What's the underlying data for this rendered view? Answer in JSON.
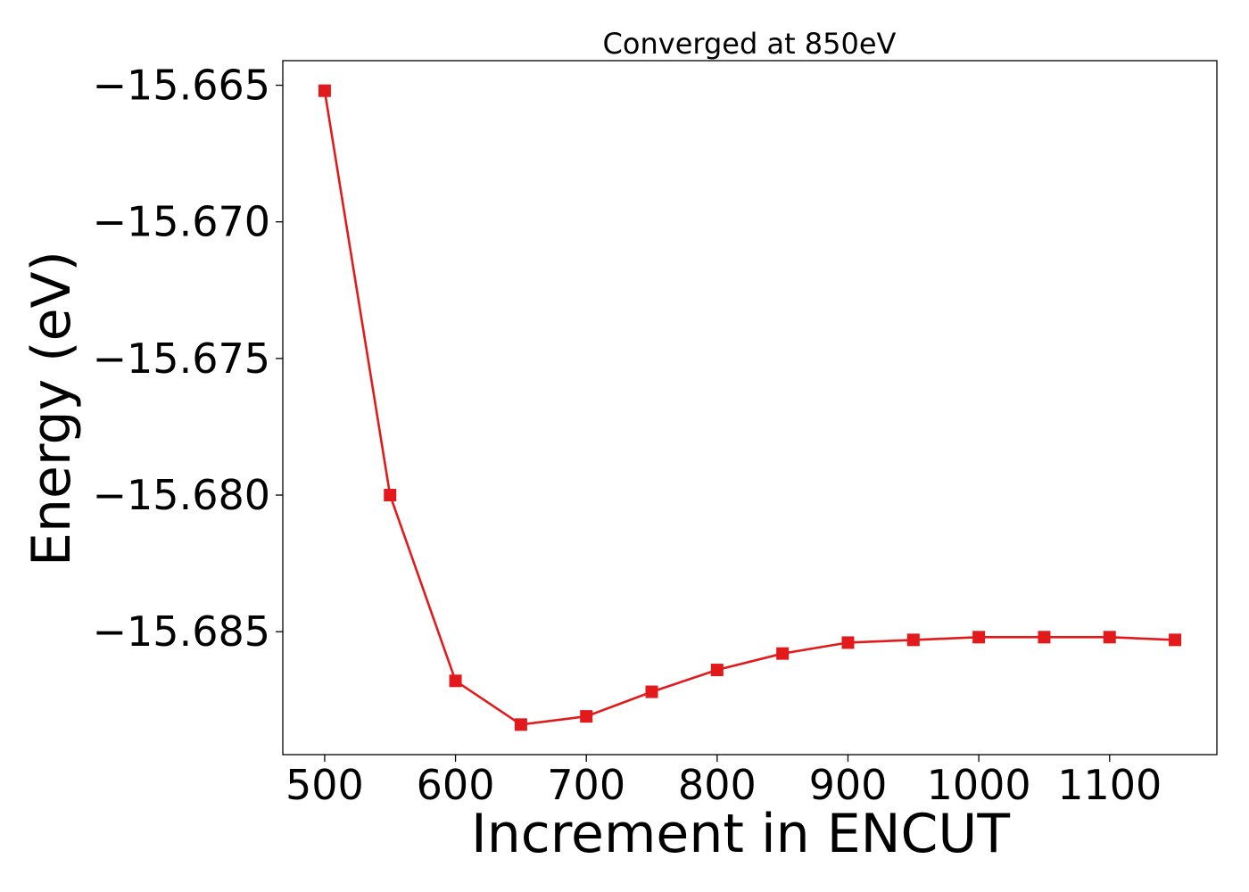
{
  "chart_data": {
    "type": "line",
    "title": "Converged at 850eV",
    "xlabel": "Increment in ENCUT",
    "ylabel": "Energy (eV)",
    "x": [
      500,
      550,
      600,
      650,
      700,
      750,
      800,
      850,
      900,
      950,
      1000,
      1050,
      1100,
      1150
    ],
    "series": [
      {
        "values": [
          -15.6652,
          -15.68,
          -15.6868,
          -15.6884,
          -15.6881,
          -15.6872,
          -15.6864,
          -15.6858,
          -15.6854,
          -15.6853,
          -15.6852,
          -15.6852,
          -15.6852,
          -15.6853
        ],
        "color": "#e31a1c",
        "marker": "square"
      }
    ],
    "xlim": [
      468,
      1182
    ],
    "ylim": [
      -15.6895,
      -15.6641
    ],
    "xticks": [
      500,
      600,
      700,
      800,
      900,
      1000,
      1100
    ],
    "xtick_labels": [
      "500",
      "600",
      "700",
      "800",
      "900",
      "1000",
      "1100"
    ],
    "yticks": [
      -15.665,
      -15.67,
      -15.675,
      -15.68,
      -15.685
    ],
    "ytick_labels": [
      "−15.665",
      "−15.670",
      "−15.675",
      "−15.680",
      "−15.685"
    ],
    "grid": false,
    "legend": false
  }
}
